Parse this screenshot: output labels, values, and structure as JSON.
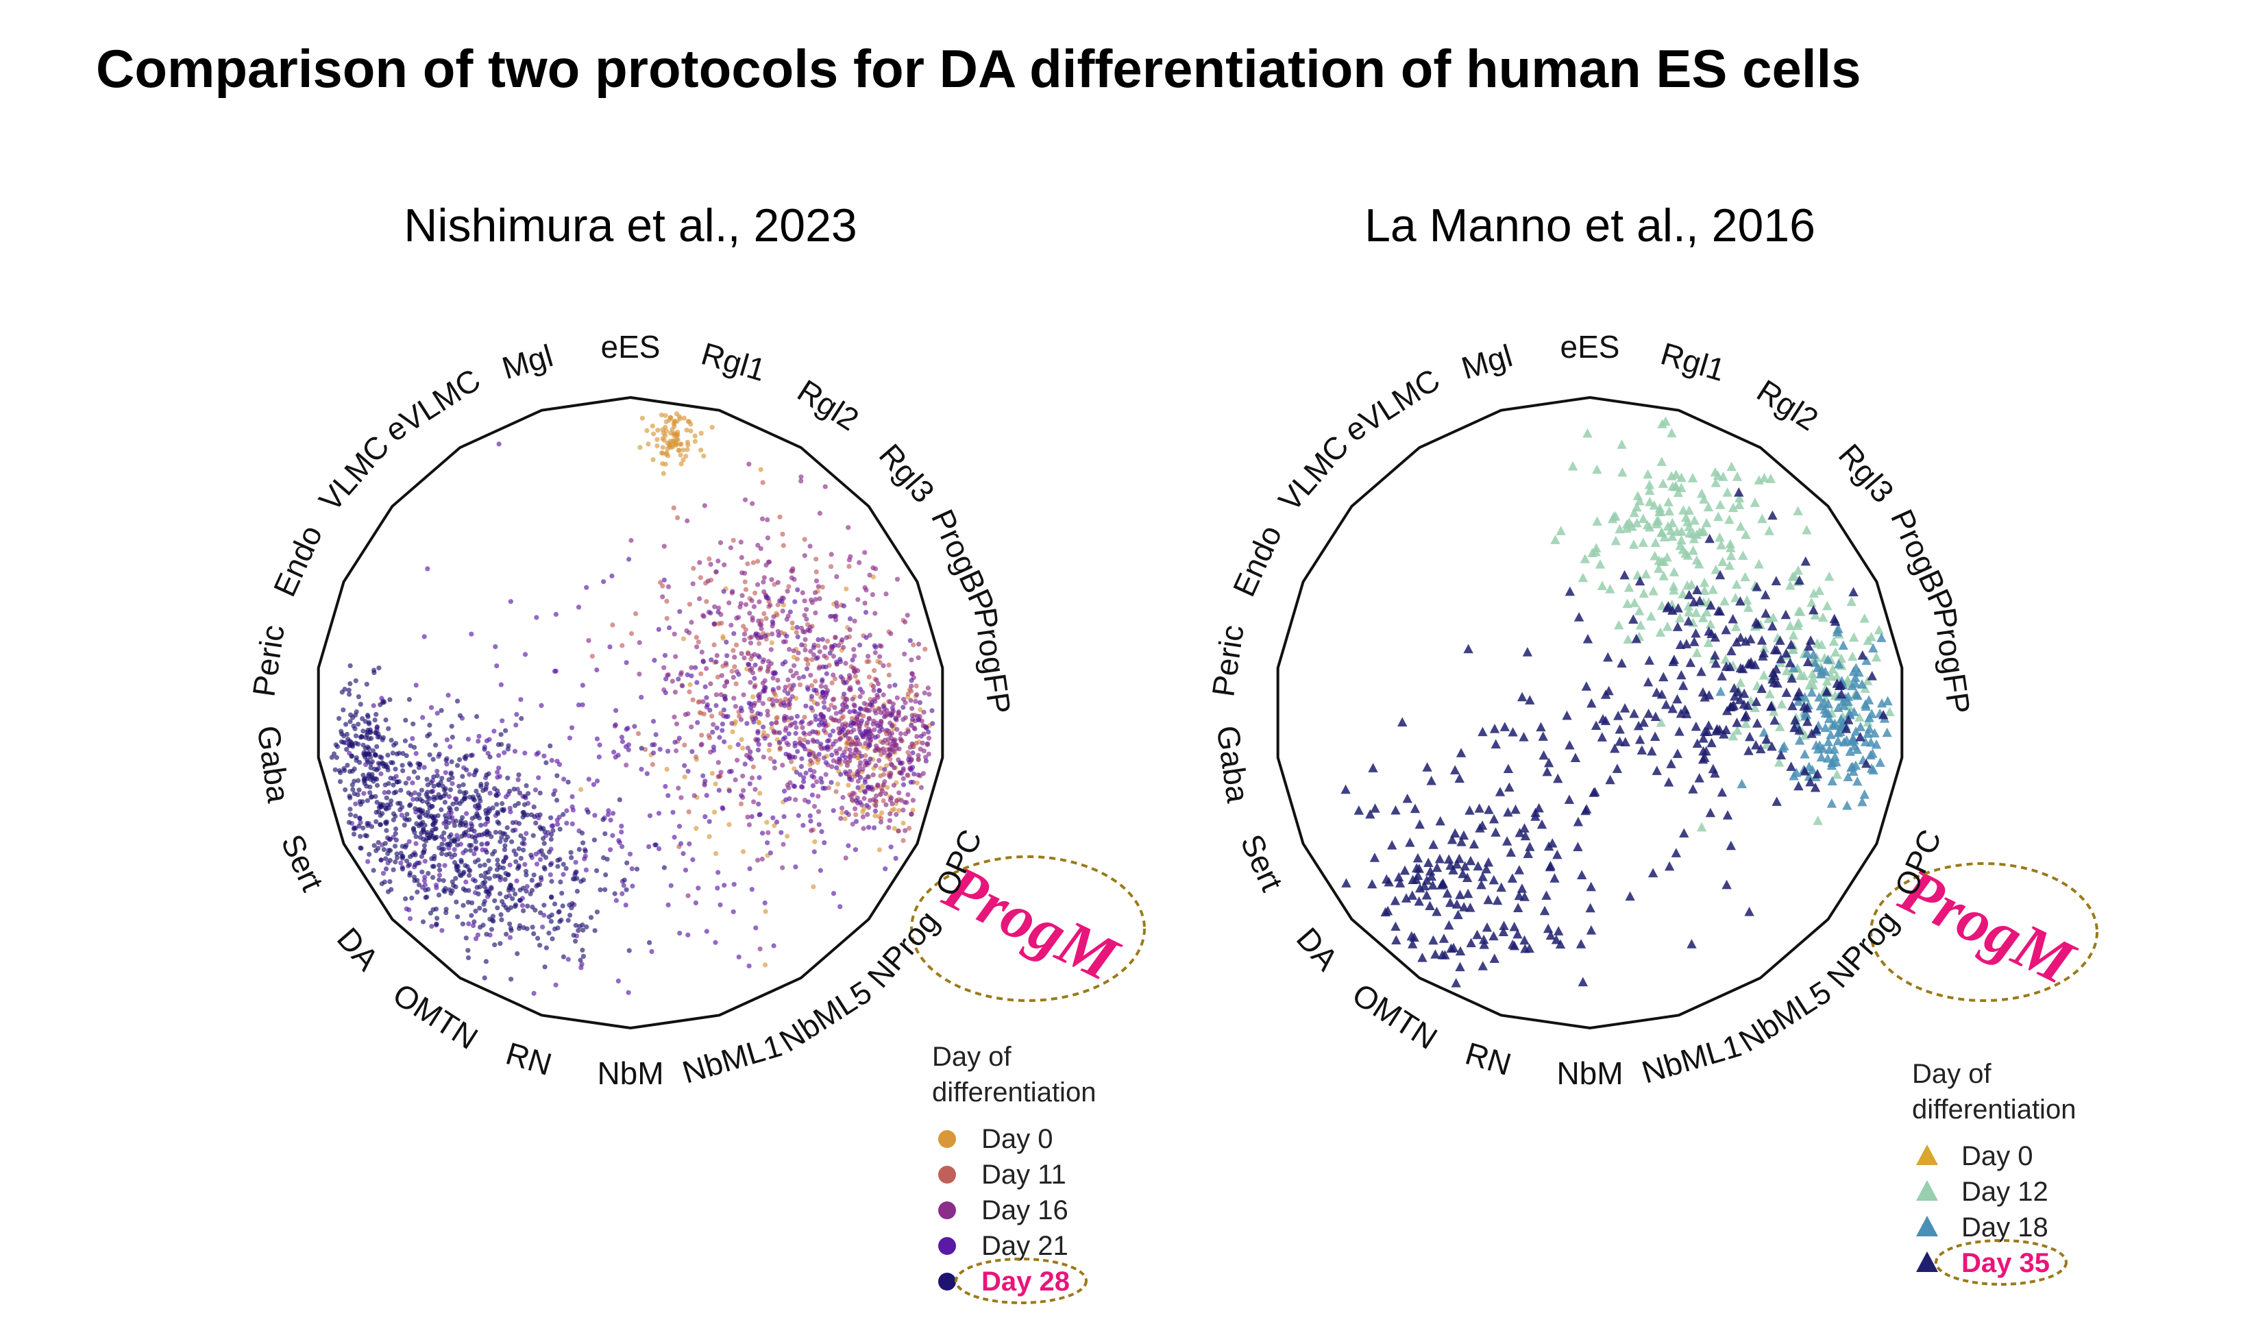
{
  "title": "Comparison of two protocols for DA differentiation of human ES cells",
  "highlight_color": "#e8157a",
  "circle_color": "#9a7a1a",
  "chart_data": [
    {
      "type": "scatter",
      "layout": "radial-polygon",
      "title": "Nishimura et al., 2023",
      "marker": "circle",
      "axes": [
        "eES",
        "Rgl1",
        "Rgl2",
        "Rgl3",
        "ProgBP",
        "ProgFP",
        "ProgM",
        "OPC",
        "NProg",
        "NbML5",
        "NbML1",
        "NbM",
        "RN",
        "OMTN",
        "DA",
        "Sert",
        "Gaba",
        "Peric",
        "Endo",
        "VLMC",
        "eVLMC",
        "Mgl"
      ],
      "highlighted_axis": "ProgM",
      "legend_title": [
        "Day of",
        "differentiation"
      ],
      "legend_placement": "bottom-right",
      "highlighted_series": "Day 28",
      "series": [
        {
          "name": "Day 0",
          "color": "#d9973a",
          "n_points": 260,
          "region": "eES to ProgFP, concentrated near eES and ProgM"
        },
        {
          "name": "Day 11",
          "color": "#c0605a",
          "n_points": 240,
          "region": "Rgl2 to ProgFP"
        },
        {
          "name": "Day 16",
          "color": "#8b2d8a",
          "n_points": 700,
          "region": "Rgl3 to ProgFP"
        },
        {
          "name": "Day 21",
          "color": "#5a1aa5",
          "n_points": 700,
          "region": "spread from ProgFP toward NbML1"
        },
        {
          "name": "Day 28",
          "color": "#1e1470",
          "n_points": 900,
          "region": "DA to NbM cluster"
        }
      ]
    },
    {
      "type": "scatter",
      "layout": "radial-polygon",
      "title": "La Manno et al., 2016",
      "marker": "triangle",
      "axes": [
        "eES",
        "Rgl1",
        "Rgl2",
        "Rgl3",
        "ProgBP",
        "ProgFP",
        "ProgM",
        "OPC",
        "NProg",
        "NbML5",
        "NbML1",
        "NbM",
        "RN",
        "OMTN",
        "DA",
        "Sert",
        "Gaba",
        "Peric",
        "Endo",
        "VLMC",
        "eVLMC",
        "Mgl"
      ],
      "highlighted_axis": "ProgM",
      "legend_title": [
        "Day of",
        "differentiation"
      ],
      "legend_placement": "bottom-right",
      "highlighted_series": "Day 35",
      "series": [
        {
          "name": "Day 0",
          "color": "#d9a62e",
          "n_points": 2,
          "region": "at eES"
        },
        {
          "name": "Day 12",
          "color": "#98cfae",
          "n_points": 300,
          "region": "eES to ProgBP band"
        },
        {
          "name": "Day 18",
          "color": "#4a8fb5",
          "n_points": 140,
          "region": "ProgBP to ProgFP"
        },
        {
          "name": "Day 35",
          "color": "#1f1f6e",
          "n_points": 420,
          "region": "spread from ProgFP to NbM / DA"
        }
      ]
    }
  ]
}
